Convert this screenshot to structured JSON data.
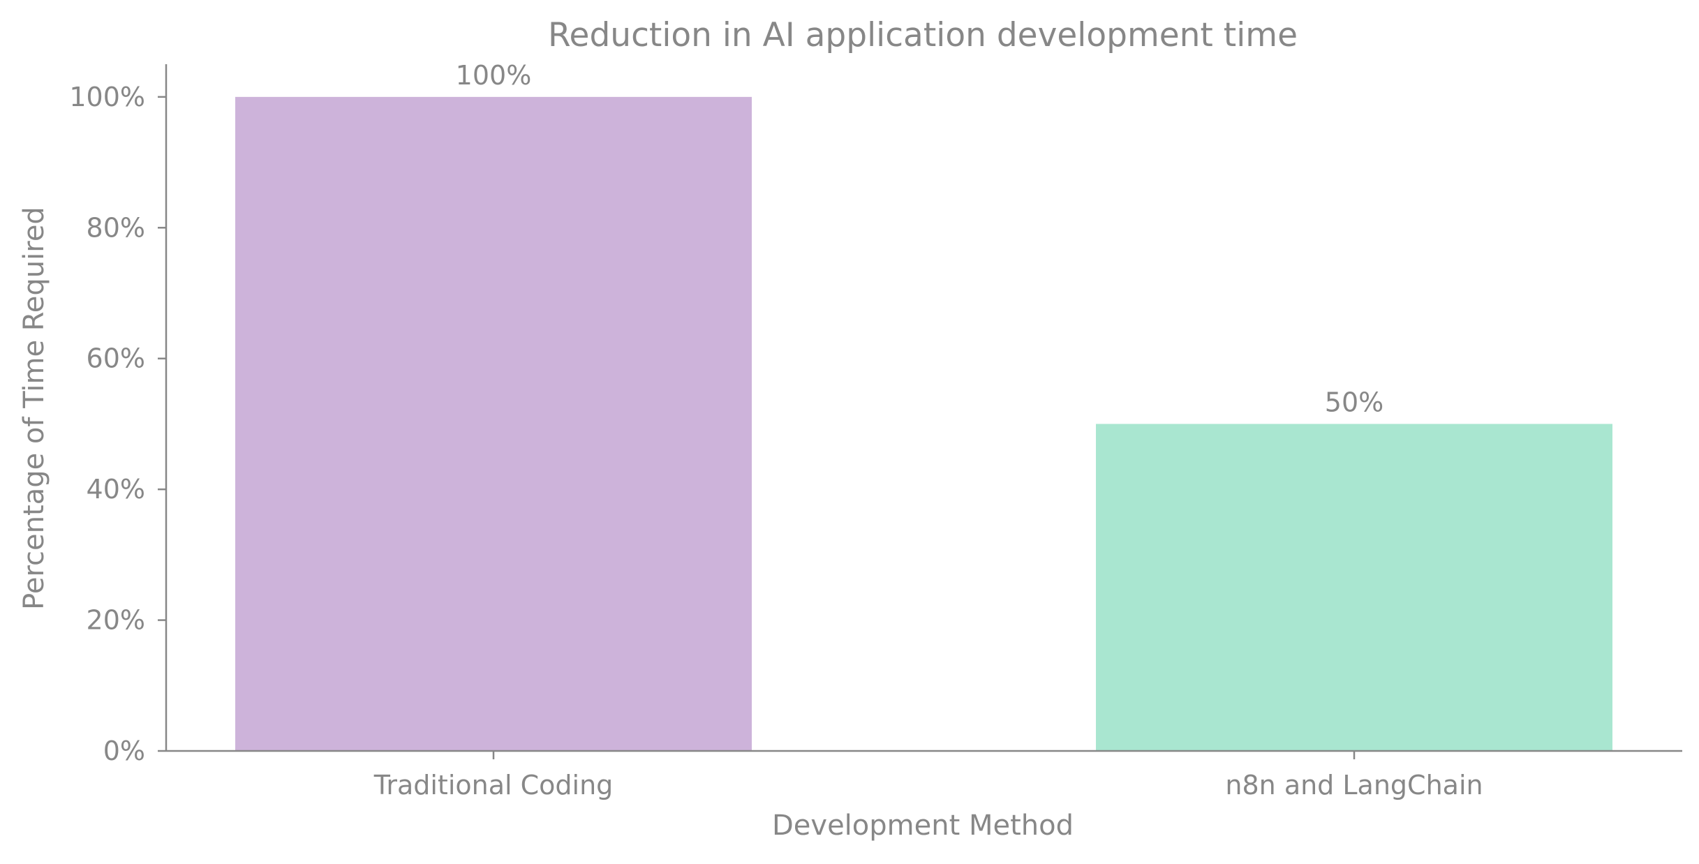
{
  "chart_data": {
    "type": "bar",
    "title": "Reduction in AI application development time",
    "xlabel": "Development Method",
    "ylabel": "Percentage of Time Required",
    "categories": [
      "Traditional Coding",
      "n8n and LangChain"
    ],
    "values": [
      100,
      50
    ],
    "value_labels": [
      "100%",
      "50%"
    ],
    "bar_colors": [
      "#cdb3da",
      "#a9e6d0"
    ],
    "axis_color": "#878787",
    "text_color": "#878787",
    "ylim": [
      0,
      105
    ],
    "yticks": [
      0,
      20,
      40,
      60,
      80,
      100
    ],
    "ytick_labels": [
      "0%",
      "20%",
      "40%",
      "60%",
      "80%",
      "100%"
    ],
    "grid": false,
    "legend": "none"
  }
}
